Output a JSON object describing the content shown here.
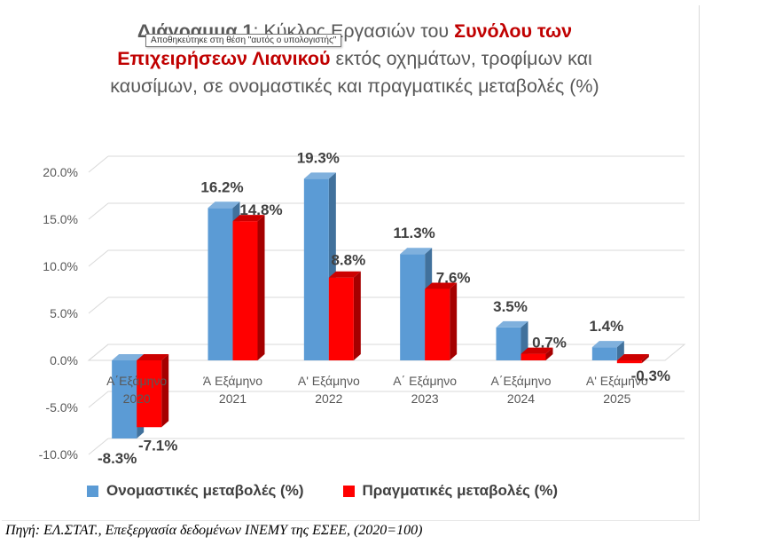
{
  "chart_data": {
    "type": "bar",
    "title": {
      "bold": "Διάγραμμα 1",
      "part1": ": Κύκλος Εργασιών του ",
      "highlight": "Συνόλου των Επιχειρήσεων Λιανικού",
      "part2": " εκτός οχημάτων, τροφίμων και καυσίμων, σε ονομαστικές και πραγματικές μεταβολές (%)"
    },
    "categories": [
      [
        "Α΄Εξάμηνο",
        "2020"
      ],
      [
        "Ά Εξάμηνο",
        "2021"
      ],
      [
        "Α' Εξάμηνο",
        "2022"
      ],
      [
        "Α΄ Εξάμηνο",
        "2023"
      ],
      [
        "Α΄Εξάμηνο",
        "2024"
      ],
      [
        "Α' Εξάμηνο",
        "2025"
      ]
    ],
    "series": [
      {
        "name": "Ονομαστικές μεταβολές (%)",
        "color": "#5b9bd5",
        "side": "#41719c",
        "top": "#7fb0dd",
        "values": [
          -8.3,
          16.2,
          19.3,
          11.3,
          3.5,
          1.4
        ],
        "labels": [
          "-8.3%",
          "16.2%",
          "19.3%",
          "11.3%",
          "3.5%",
          "1.4%"
        ]
      },
      {
        "name": "Πραγματικές μεταβολές (%)",
        "color": "#ff0000",
        "side": "#a50000",
        "top": "#cc0000",
        "values": [
          -7.1,
          14.8,
          8.8,
          7.6,
          0.7,
          -0.3
        ],
        "labels": [
          "-7.1%",
          "14.8%",
          "8.8%",
          "7.6%",
          "0.7%",
          "-0.3%"
        ]
      }
    ],
    "ylim": [
      -10,
      20
    ],
    "yticks": [
      20,
      15,
      10,
      5,
      0,
      -5,
      -10
    ],
    "ytick_labels": [
      "20.0%",
      "15.0%",
      "10.0%",
      "5.0%",
      "0.0%",
      "-5.0%",
      "-10.0%"
    ],
    "grid": true,
    "legend": "bottom"
  },
  "tooltip": "Αποθηκεύτηκε στη θέση \"αυτός ο υπολογιστής\"",
  "source": "Πηγή: ΕΛ.ΣΤΑΤ., Επεξεργασία δεδομένων ΙΝΕΜΥ της ΕΣΕΕ, (2020=100)"
}
